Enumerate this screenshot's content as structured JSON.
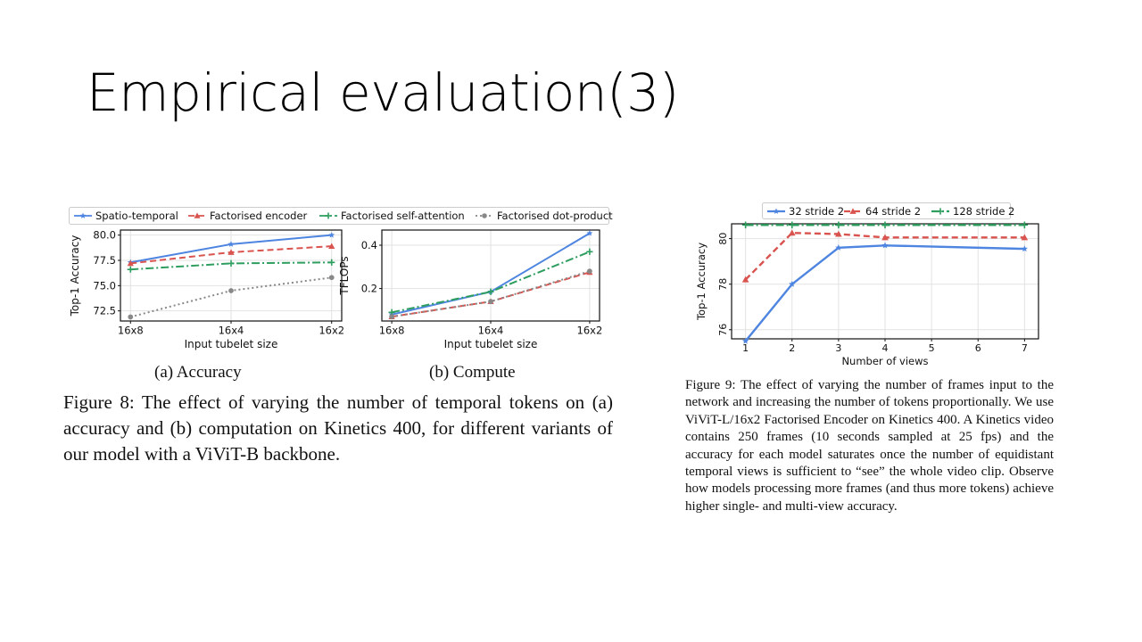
{
  "slide": {
    "title": "Empirical evaluation(3)"
  },
  "figure8": {
    "legend": [
      "Spatio-temporal",
      "Factorised encoder",
      "Factorised self-attention",
      "Factorised dot-product"
    ],
    "subcaption_a": "(a) Accuracy",
    "subcaption_b": "(b) Compute",
    "caption": "Figure 8: The effect of varying the number of temporal tokens on (a) accuracy and (b) computation on Kinetics 400, for different variants of our model with a ViViT-B backbone."
  },
  "figure9": {
    "caption": "Figure 9: The effect of varying the number of frames input to the network and increasing the number of tokens proportionally. We use ViViT-L/16x2 Factorised Encoder on Kinetics 400. A Kinetics video contains 250 frames (10 seconds sampled at 25 fps) and the accuracy for each model saturates once the number of equidistant temporal views is sufficient to “see” the whole video clip. Observe how models processing more frames (and thus more tokens) achieve higher single- and multi-view accuracy."
  },
  "chart_data": [
    {
      "type": "line",
      "categories": [
        "16x8",
        "16x4",
        "16x2"
      ],
      "xlabel": "Input tubelet size",
      "ylabel": "Top-1 Accuracy",
      "ylim": [
        71.5,
        80.5
      ],
      "yticks": [
        "72.5",
        "75.0",
        "77.5",
        "80.0"
      ],
      "grid": true,
      "series": [
        {
          "name": "Spatio-temporal",
          "color": "#4e85e0",
          "dash": "solid",
          "marker": "star",
          "values": [
            77.3,
            79.1,
            80.0
          ]
        },
        {
          "name": "Factorised encoder",
          "color": "#d9534f",
          "dash": "dashed",
          "marker": "triangle",
          "values": [
            77.2,
            78.3,
            78.9
          ]
        },
        {
          "name": "Factorised self-attention",
          "color": "#2e9e5f",
          "dash": "dashdot",
          "marker": "plus",
          "values": [
            76.6,
            77.2,
            77.3
          ]
        },
        {
          "name": "Factorised dot-product",
          "color": "#888888",
          "dash": "dotted",
          "marker": "circle",
          "values": [
            71.9,
            74.5,
            75.8
          ]
        }
      ]
    },
    {
      "type": "line",
      "categories": [
        "16x8",
        "16x4",
        "16x2"
      ],
      "xlabel": "Input tubelet size",
      "ylabel": "TFLOPs",
      "ylim": [
        0.05,
        0.47
      ],
      "yticks": [
        "0.2",
        "0.4"
      ],
      "grid": true,
      "series": [
        {
          "name": "Spatio-temporal",
          "color": "#4e85e0",
          "dash": "solid",
          "marker": "star",
          "values": [
            0.08,
            0.185,
            0.455
          ]
        },
        {
          "name": "Factorised encoder",
          "color": "#d9534f",
          "dash": "dashed",
          "marker": "triangle",
          "values": [
            0.07,
            0.14,
            0.275
          ]
        },
        {
          "name": "Factorised self-attention",
          "color": "#2e9e5f",
          "dash": "dashdot",
          "marker": "plus",
          "values": [
            0.09,
            0.185,
            0.37
          ]
        },
        {
          "name": "Factorised dot-product",
          "color": "#888888",
          "dash": "dotted",
          "marker": "circle",
          "values": [
            0.07,
            0.14,
            0.28
          ]
        }
      ]
    },
    {
      "type": "line",
      "x": [
        1,
        2,
        3,
        4,
        5,
        6,
        7
      ],
      "xticks": [
        "1",
        "2",
        "3",
        "4",
        "5",
        "6",
        "7"
      ],
      "xlim": [
        0.7,
        7.3
      ],
      "xlabel": "Number of views",
      "ylabel": "Top-1 Accuracy",
      "ylim": [
        75.6,
        80.65
      ],
      "yticks": [
        "76",
        "78",
        "80"
      ],
      "grid": true,
      "legend_position": "top",
      "series": [
        {
          "name": "32 stride 2",
          "color": "#4e85e0",
          "dash": "solid",
          "marker": "star",
          "values": [
            75.5,
            78.0,
            79.6,
            79.7,
            null,
            null,
            79.55
          ]
        },
        {
          "name": "64 stride 2",
          "color": "#d9534f",
          "dash": "dashed",
          "marker": "triangle",
          "values": [
            78.2,
            80.25,
            80.2,
            80.05,
            null,
            null,
            80.05
          ]
        },
        {
          "name": "128 stride 2",
          "color": "#2e9e5f",
          "dash": "dashdot",
          "marker": "plus",
          "values": [
            80.6,
            80.6,
            80.6,
            80.6,
            null,
            null,
            80.6
          ]
        }
      ]
    }
  ]
}
